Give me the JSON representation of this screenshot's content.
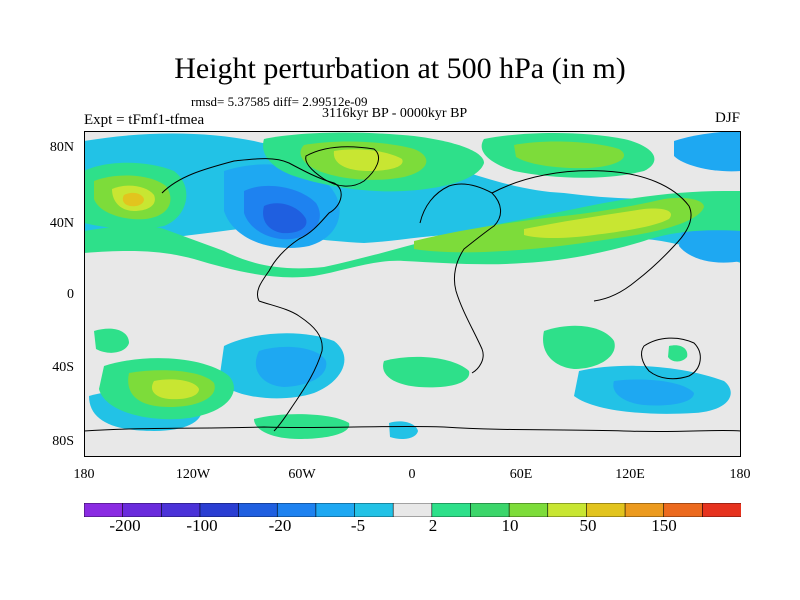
{
  "plot": {
    "title": "Height perturbation at 500 hPa (in m)",
    "stats": "rmsd= 5.37585 diff= 2.99512e-09",
    "period": "3116kyr BP - 0000kyr BP",
    "experiment": "Expt = tFmf1-tfmea",
    "season": "DJF"
  },
  "axes": {
    "lat_ticks": [
      "80N",
      "40N",
      "0",
      "40S",
      "80S"
    ],
    "lon_ticks": [
      "180",
      "120W",
      "60W",
      "0",
      "60E",
      "120E",
      "180"
    ]
  },
  "colorbar": {
    "labels": [
      "-200",
      "-100",
      "-20",
      "-5",
      "2",
      "10",
      "50",
      "150"
    ],
    "colors": [
      "#8a2be2",
      "#6a2bdc",
      "#4b32d8",
      "#2a3ed2",
      "#1f5fe0",
      "#1e82f0",
      "#1ea8f2",
      "#22c2e6",
      "#e8e8e8",
      "#2ee08a",
      "#3cd66b",
      "#7ddc3a",
      "#c8e632",
      "#e2c41e",
      "#ec9a1e",
      "#ec6a1e",
      "#e6321e"
    ]
  },
  "map_colors": {
    "background": "#e8e8e8",
    "neg_light": "#22c2e6",
    "neg_mid": "#1ea8f2",
    "neg_dark": "#1e82f0",
    "neg_deep": "#1f5fe0",
    "pos_light": "#2ee08a",
    "pos_mid": "#7ddc3a",
    "pos_high": "#c8e632",
    "pos_peak": "#e2c41e",
    "coast": "#000000"
  }
}
